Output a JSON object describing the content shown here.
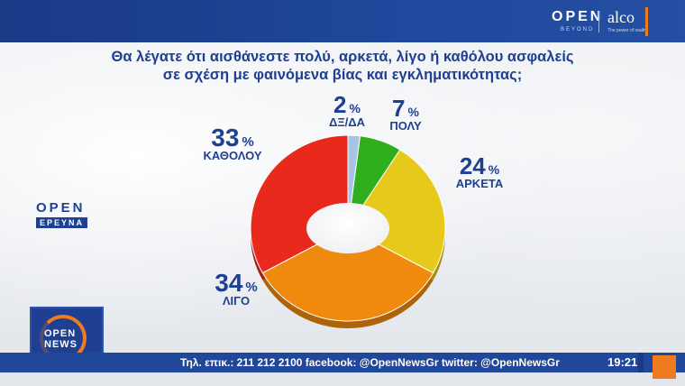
{
  "header": {
    "brand_open": "OPEN",
    "brand_beyond": "BEYOND",
    "brand_alco": "alco",
    "brand_alco_sub": "The power of reality"
  },
  "question": {
    "line1": "Θα λέγατε ότι αισθάνεστε πολύ, αρκετά, λίγο ή καθόλου ασφαλείς",
    "line2": "σε σχέση με φαινόμενα βίας και εγκληματικότητας;"
  },
  "side_logo": {
    "open": "OPEN",
    "label": "ΕΡΕΥΝΑ"
  },
  "network_logo": {
    "open": "OPEN",
    "news": "NEWS"
  },
  "ticker": {
    "text": "Τηλ. επικ.: 211 212 2100 facebook: @OpenNewsGr twitter: @OpenNewsGr",
    "time": "19:21"
  },
  "chart_data": {
    "type": "pie",
    "variant": "donut",
    "unit": "%",
    "slices": [
      {
        "label": "ΔΞ/ΔΑ",
        "value": 2,
        "color": "#a9c4e4"
      },
      {
        "label": "ΠΟΛΥ",
        "value": 7,
        "color": "#2fae1e"
      },
      {
        "label": "ΑΡΚΕΤΑ",
        "value": 24,
        "color": "#e6c91a"
      },
      {
        "label": "ΛΙΓΟ",
        "value": 34,
        "color": "#f08a0e"
      },
      {
        "label": "ΚΑΘΟΛΟΥ",
        "value": 33,
        "color": "#e8291c"
      }
    ],
    "start": "top",
    "direction": "clockwise"
  },
  "colors": {
    "brand_blue": "#1e3f92",
    "accent_orange": "#f07a1e"
  }
}
